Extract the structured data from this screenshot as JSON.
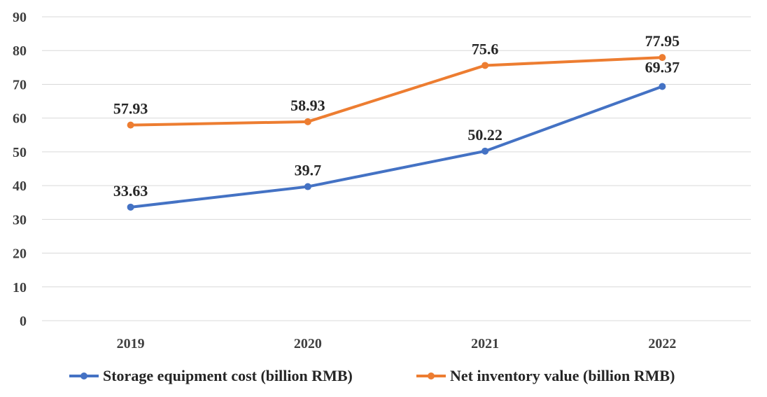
{
  "chart_data": {
    "type": "line",
    "categories": [
      "2019",
      "2020",
      "2021",
      "2022"
    ],
    "series": [
      {
        "name": "Storage equipment cost (billion RMB)",
        "values": [
          33.63,
          39.7,
          50.22,
          69.37
        ],
        "color": "#4472c4",
        "labels": [
          "33.63",
          "39.7",
          "50.22",
          "69.37"
        ]
      },
      {
        "name": "Net inventory value (billion RMB)",
        "values": [
          57.93,
          58.93,
          75.6,
          77.95
        ],
        "color": "#ed7d31",
        "labels": [
          "57.93",
          "58.93",
          "75.6",
          "77.95"
        ]
      }
    ],
    "title": "",
    "xlabel": "",
    "ylabel": "",
    "ylim": [
      0,
      90
    ],
    "yticks": [
      "0",
      "10",
      "20",
      "30",
      "40",
      "50",
      "60",
      "70",
      "80",
      "90"
    ],
    "grid": true,
    "legend": "bottom-center"
  }
}
